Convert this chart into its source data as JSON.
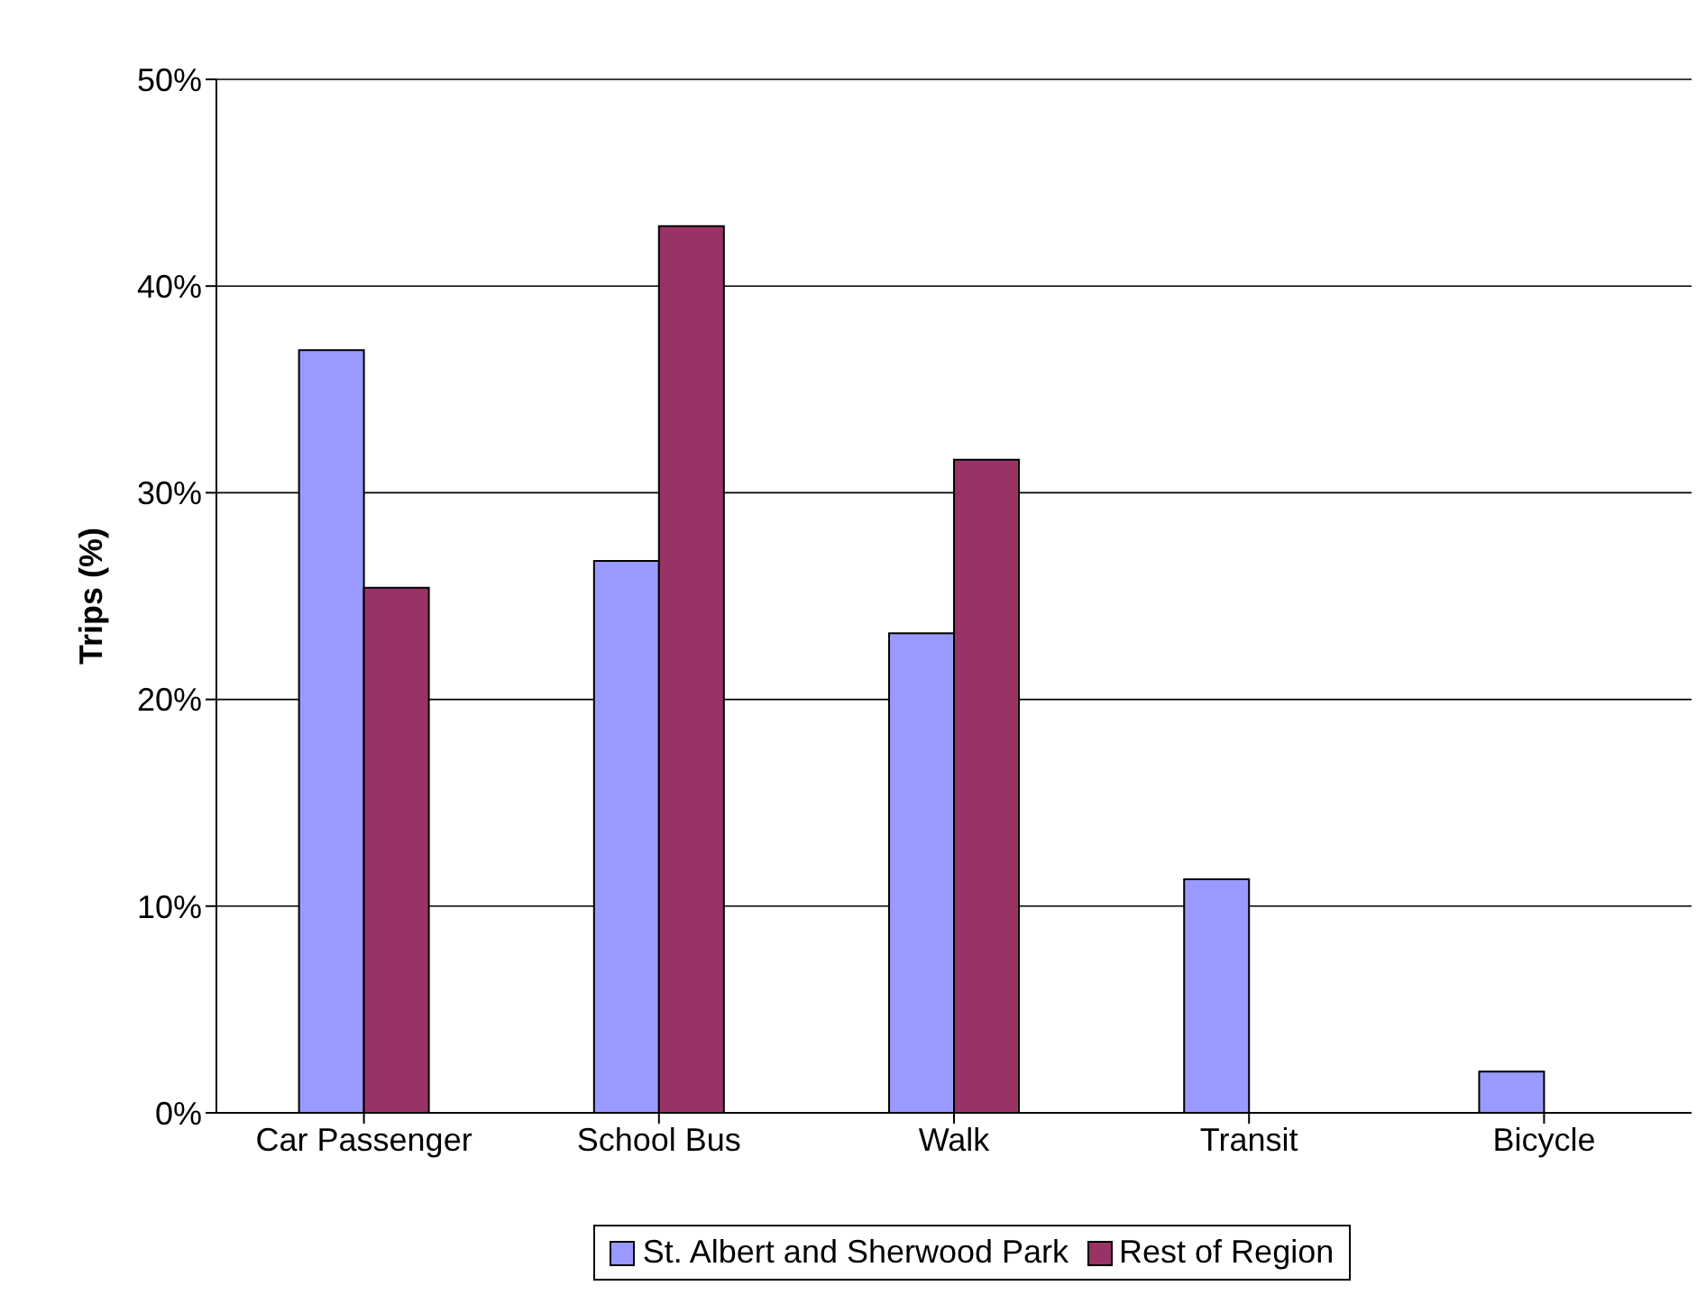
{
  "chart_data": {
    "type": "bar",
    "ylabel": "Trips (%)",
    "categories": [
      "Car Passenger",
      "School Bus",
      "Walk",
      "Transit",
      "Bicycle"
    ],
    "series": [
      {
        "name": "St. Albert and Sherwood Park",
        "color": "#9999ff",
        "values": [
          36.9,
          26.7,
          23.2,
          11.3,
          2.0
        ]
      },
      {
        "name": "Rest of Region",
        "color": "#993366",
        "values": [
          25.4,
          42.9,
          31.6,
          0,
          0
        ]
      }
    ],
    "ylim": [
      0,
      50
    ],
    "yticks": [
      {
        "value": 0,
        "label": "0%"
      },
      {
        "value": 10,
        "label": "10%"
      },
      {
        "value": 20,
        "label": "20%"
      },
      {
        "value": 30,
        "label": "30%"
      },
      {
        "value": 40,
        "label": "40%"
      },
      {
        "value": 50,
        "label": "50%"
      }
    ],
    "grid": "y",
    "legend": "bottom"
  }
}
